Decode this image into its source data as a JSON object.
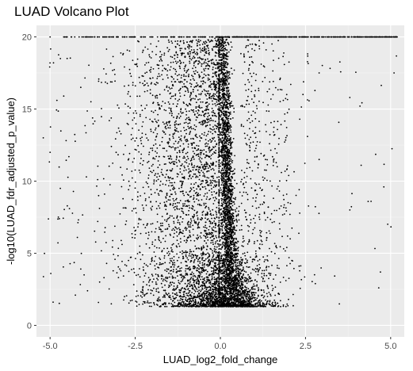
{
  "chart_data": {
    "type": "scatter",
    "title": "LUAD Volcano Plot",
    "xlabel": "LUAD_log2_fold_change",
    "ylabel": "-log10(LUAD_fdr_adjusted_p_value)",
    "xlim": [
      -5.4,
      5.4
    ],
    "ylim": [
      -0.8,
      20.8
    ],
    "x_ticks": [
      -5.0,
      -2.5,
      0.0,
      2.5,
      5.0
    ],
    "x_tick_labels": [
      "-5.0",
      "-2.5",
      "0.0",
      "2.5",
      "5.0"
    ],
    "y_ticks": [
      0,
      5,
      10,
      15,
      20
    ],
    "y_tick_labels": [
      "0",
      "5",
      "10",
      "15",
      "20"
    ],
    "grid": true,
    "background": "#ebebeb",
    "point_color": "#000000",
    "y_cap": 20,
    "points_sample": [
      [
        -5.2,
        13.0
      ],
      [
        -5.0,
        12.0
      ],
      [
        -4.9,
        18.2
      ],
      [
        -4.8,
        15.6
      ],
      [
        -4.7,
        9.5
      ],
      [
        -4.6,
        15.9
      ],
      [
        -4.5,
        18.5
      ],
      [
        -4.2,
        6.1
      ],
      [
        -4.1,
        16.5
      ],
      [
        -4.0,
        3.5
      ],
      [
        -3.9,
        2.4
      ],
      [
        -3.8,
        15.5
      ],
      [
        -3.6,
        7.2
      ],
      [
        -3.4,
        9.1
      ],
      [
        -3.2,
        12.4
      ],
      [
        -2.8,
        4.2
      ],
      [
        -2.5,
        6.3
      ],
      [
        -2.1,
        3.0
      ],
      [
        -1.8,
        11.7
      ],
      [
        -1.4,
        5.1
      ],
      [
        -0.9,
        2.7
      ],
      [
        -0.5,
        1.9
      ],
      [
        0.1,
        1.5
      ],
      [
        0.3,
        7.4
      ],
      [
        0.4,
        14.8
      ],
      [
        0.6,
        3.2
      ],
      [
        1.0,
        5.8
      ],
      [
        1.3,
        10.2
      ],
      [
        1.7,
        2.2
      ],
      [
        2.0,
        1.8
      ],
      [
        2.1,
        4.5
      ],
      [
        2.9,
        17.5
      ],
      [
        2.9,
        11.5
      ],
      [
        3.8,
        15.8
      ],
      [
        3.8,
        8.0
      ],
      [
        4.1,
        15.2
      ],
      [
        4.7,
        3.7
      ],
      [
        4.8,
        9.6
      ],
      [
        5.1,
        17.5
      ],
      [
        -0.05,
        5.0
      ],
      [
        -0.05,
        12.0
      ],
      [
        -0.05,
        19.0
      ],
      [
        -5.0,
        20.0
      ],
      [
        -3.0,
        20.0
      ],
      [
        1.5,
        20.0
      ],
      [
        3.5,
        20.0
      ],
      [
        4.6,
        20.0
      ],
      [
        5.0,
        20.0
      ]
    ]
  }
}
